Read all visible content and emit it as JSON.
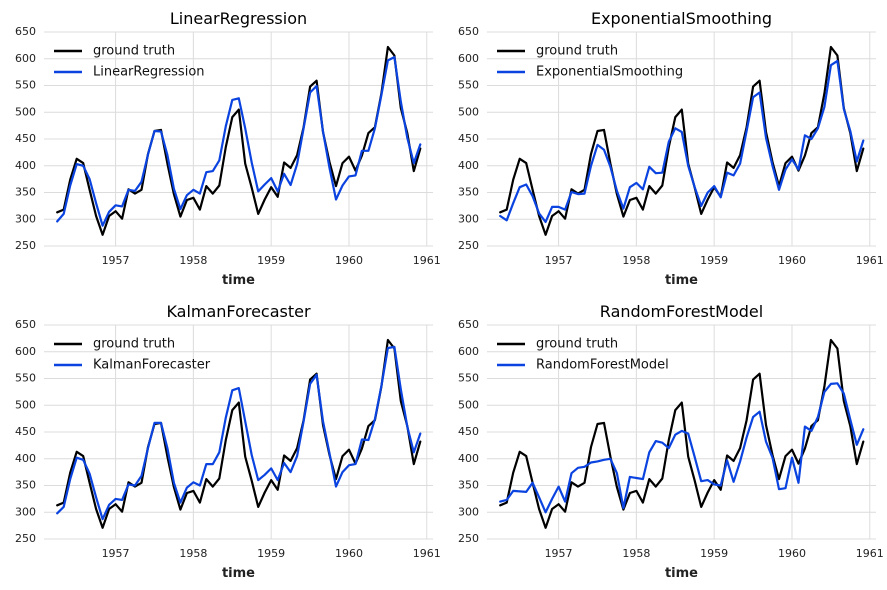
{
  "chart_data": [
    {
      "type": "line",
      "title": "LinearRegression",
      "xlabel": "time",
      "ylabel": "",
      "ylim": [
        250,
        650
      ],
      "yticks": [
        250,
        300,
        350,
        400,
        450,
        500,
        550,
        600,
        650
      ],
      "xticks": [
        {
          "value": 1957,
          "label": "1957"
        },
        {
          "value": 1958,
          "label": "1958"
        },
        {
          "value": 1959,
          "label": "1959"
        },
        {
          "value": 1960,
          "label": "1960"
        },
        {
          "value": 1961,
          "label": "1961"
        }
      ],
      "xlim": [
        1956.08,
        1961.08
      ],
      "x_start": 1956.25,
      "x_step": 0.0833333,
      "grid": true,
      "legend": "upper-left",
      "series": [
        {
          "name": "ground truth",
          "color": "#000000",
          "values": [
            313,
            318,
            374,
            413,
            405,
            355,
            306,
            271,
            306,
            315,
            301,
            356,
            348,
            355,
            422,
            465,
            467,
            404,
            347,
            305,
            336,
            340,
            318,
            362,
            348,
            363,
            435,
            491,
            505,
            404,
            359,
            310,
            337,
            360,
            342,
            406,
            396,
            420,
            472,
            548,
            559,
            463,
            407,
            362,
            405,
            417,
            391,
            419,
            461,
            472,
            535,
            622,
            606,
            508,
            461,
            390,
            432
          ]
        },
        {
          "name": "LinearRegression",
          "color": "#0a43e0",
          "values": [
            296,
            310,
            363,
            403,
            400,
            375,
            330,
            288,
            314,
            326,
            324,
            355,
            353,
            370,
            421,
            465,
            464,
            420,
            357,
            319,
            345,
            355,
            348,
            388,
            390,
            410,
            474,
            523,
            526,
            470,
            406,
            352,
            365,
            377,
            352,
            385,
            364,
            403,
            470,
            537,
            549,
            464,
            396,
            337,
            363,
            380,
            382,
            428,
            428,
            470,
            532,
            597,
            603,
            520,
            452,
            405,
            440
          ]
        }
      ]
    },
    {
      "type": "line",
      "title": "ExponentialSmoothing",
      "xlabel": "time",
      "ylabel": "",
      "ylim": [
        250,
        650
      ],
      "yticks": [
        250,
        300,
        350,
        400,
        450,
        500,
        550,
        600,
        650
      ],
      "xticks": [
        {
          "value": 1957,
          "label": "1957"
        },
        {
          "value": 1958,
          "label": "1958"
        },
        {
          "value": 1959,
          "label": "1959"
        },
        {
          "value": 1960,
          "label": "1960"
        },
        {
          "value": 1961,
          "label": "1961"
        }
      ],
      "xlim": [
        1956.08,
        1961.08
      ],
      "x_start": 1956.25,
      "x_step": 0.0833333,
      "grid": true,
      "legend": "upper-left",
      "series": [
        {
          "name": "ground truth",
          "color": "#000000",
          "values": [
            313,
            318,
            374,
            413,
            405,
            355,
            306,
            271,
            306,
            315,
            301,
            356,
            348,
            355,
            422,
            465,
            467,
            404,
            347,
            305,
            336,
            340,
            318,
            362,
            348,
            363,
            435,
            491,
            505,
            404,
            359,
            310,
            337,
            360,
            342,
            406,
            396,
            420,
            472,
            548,
            559,
            463,
            407,
            362,
            405,
            417,
            391,
            419,
            461,
            472,
            535,
            622,
            606,
            508,
            461,
            390,
            432
          ]
        },
        {
          "name": "ExponentialSmoothing",
          "color": "#0a43e0",
          "values": [
            306,
            298,
            330,
            360,
            365,
            343,
            311,
            295,
            323,
            323,
            318,
            351,
            347,
            348,
            400,
            439,
            430,
            398,
            353,
            320,
            360,
            368,
            356,
            398,
            386,
            387,
            445,
            470,
            463,
            400,
            360,
            325,
            350,
            362,
            341,
            387,
            382,
            404,
            465,
            528,
            537,
            452,
            400,
            355,
            393,
            412,
            393,
            457,
            450,
            470,
            510,
            588,
            596,
            506,
            465,
            408,
            447
          ]
        }
      ]
    },
    {
      "type": "line",
      "title": "KalmanForecaster",
      "xlabel": "time",
      "ylabel": "",
      "ylim": [
        250,
        650
      ],
      "yticks": [
        250,
        300,
        350,
        400,
        450,
        500,
        550,
        600,
        650
      ],
      "xticks": [
        {
          "value": 1957,
          "label": "1957"
        },
        {
          "value": 1958,
          "label": "1958"
        },
        {
          "value": 1959,
          "label": "1959"
        },
        {
          "value": 1960,
          "label": "1960"
        },
        {
          "value": 1961,
          "label": "1961"
        }
      ],
      "xlim": [
        1956.08,
        1961.08
      ],
      "x_start": 1956.25,
      "x_step": 0.0833333,
      "grid": true,
      "legend": "upper-left",
      "series": [
        {
          "name": "ground truth",
          "color": "#000000",
          "values": [
            313,
            318,
            374,
            413,
            405,
            355,
            306,
            271,
            306,
            315,
            301,
            356,
            348,
            355,
            422,
            465,
            467,
            404,
            347,
            305,
            336,
            340,
            318,
            362,
            348,
            363,
            435,
            491,
            505,
            404,
            359,
            310,
            337,
            360,
            342,
            406,
            396,
            420,
            472,
            548,
            559,
            463,
            407,
            362,
            405,
            417,
            391,
            419,
            461,
            472,
            535,
            622,
            606,
            508,
            461,
            390,
            432
          ]
        },
        {
          "name": "KalmanForecaster",
          "color": "#0a43e0",
          "values": [
            298,
            310,
            362,
            402,
            398,
            372,
            328,
            287,
            314,
            325,
            323,
            352,
            350,
            368,
            420,
            467,
            467,
            420,
            355,
            318,
            346,
            356,
            350,
            390,
            390,
            412,
            477,
            528,
            532,
            470,
            407,
            360,
            370,
            382,
            360,
            392,
            375,
            405,
            470,
            540,
            557,
            470,
            410,
            348,
            375,
            388,
            390,
            436,
            435,
            474,
            536,
            607,
            609,
            530,
            460,
            412,
            447
          ]
        }
      ]
    },
    {
      "type": "line",
      "title": "RandomForestModel",
      "xlabel": "time",
      "ylabel": "",
      "ylim": [
        250,
        650
      ],
      "yticks": [
        250,
        300,
        350,
        400,
        450,
        500,
        550,
        600,
        650
      ],
      "xticks": [
        {
          "value": 1957,
          "label": "1957"
        },
        {
          "value": 1958,
          "label": "1958"
        },
        {
          "value": 1959,
          "label": "1959"
        },
        {
          "value": 1960,
          "label": "1960"
        },
        {
          "value": 1961,
          "label": "1961"
        }
      ],
      "xlim": [
        1956.08,
        1961.08
      ],
      "x_start": 1956.25,
      "x_step": 0.0833333,
      "grid": true,
      "legend": "upper-left",
      "series": [
        {
          "name": "ground truth",
          "color": "#000000",
          "values": [
            313,
            318,
            374,
            413,
            405,
            355,
            306,
            271,
            306,
            315,
            301,
            356,
            348,
            355,
            422,
            465,
            467,
            404,
            347,
            305,
            336,
            340,
            318,
            362,
            348,
            363,
            435,
            491,
            505,
            404,
            359,
            310,
            337,
            360,
            342,
            406,
            396,
            420,
            472,
            548,
            559,
            463,
            407,
            362,
            405,
            417,
            391,
            419,
            461,
            472,
            535,
            622,
            606,
            508,
            461,
            390,
            432
          ]
        },
        {
          "name": "RandomForestModel",
          "color": "#0a43e0",
          "values": [
            320,
            323,
            340,
            339,
            338,
            355,
            328,
            300,
            325,
            348,
            320,
            373,
            383,
            385,
            393,
            395,
            398,
            400,
            373,
            308,
            366,
            364,
            362,
            412,
            433,
            430,
            420,
            445,
            452,
            447,
            403,
            358,
            360,
            352,
            350,
            397,
            357,
            395,
            440,
            478,
            488,
            432,
            402,
            343,
            345,
            402,
            355,
            460,
            452,
            478,
            525,
            540,
            541,
            522,
            473,
            426,
            455
          ]
        }
      ]
    }
  ]
}
